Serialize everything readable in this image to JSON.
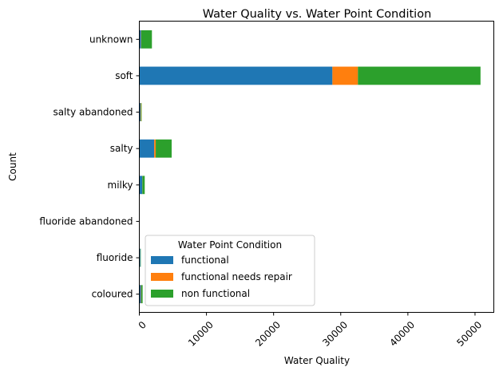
{
  "chart_data": {
    "type": "bar",
    "orientation": "horizontal",
    "stacked": true,
    "title": "Water Quality vs. Water Point Condition",
    "xlabel": "Water Quality",
    "ylabel": "Count",
    "categories": [
      "coloured",
      "fluoride",
      "fluoride abandoned",
      "milky",
      "salty",
      "salty abandoned",
      "soft",
      "unknown"
    ],
    "series": [
      {
        "name": "functional",
        "color": "#1f77b4",
        "values": [
          246,
          151,
          12,
          438,
          2220,
          174,
          28760,
          264
        ]
      },
      {
        "name": "functional needs repair",
        "color": "#ff7f0e",
        "values": [
          54,
          13,
          0,
          14,
          225,
          72,
          3795,
          35
        ]
      },
      {
        "name": "non functional",
        "color": "#2ca02c",
        "values": [
          190,
          53,
          5,
          352,
          2370,
          93,
          18264,
          1577
        ]
      }
    ],
    "xlim": [
      0,
      52800
    ],
    "xticks": [
      0,
      10000,
      20000,
      30000,
      40000,
      50000
    ],
    "xtick_labels": [
      "0",
      "10000",
      "20000",
      "30000",
      "40000",
      "50000"
    ],
    "xtick_rotation": 45,
    "grid": false,
    "legend": {
      "title": "Water Point Condition",
      "placement": "lower-left"
    }
  }
}
